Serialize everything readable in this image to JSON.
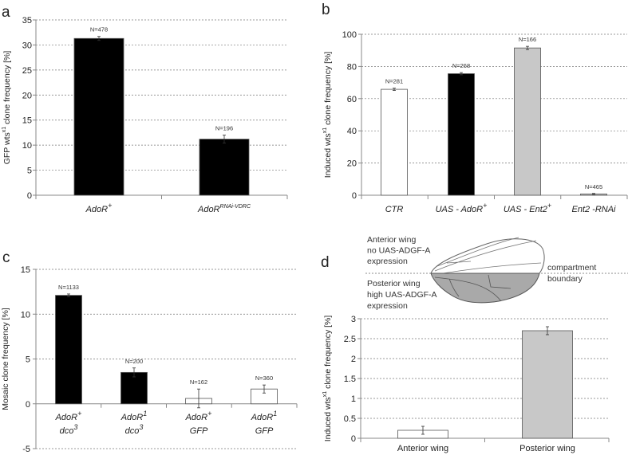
{
  "chart_data": [
    {
      "panel": "a",
      "type": "bar",
      "title": "",
      "ylabel_parts": [
        {
          "text": "GFP wts"
        },
        {
          "text": "x1",
          "sup": true
        },
        {
          "text": "  clone frequency [%]"
        }
      ],
      "ylim": [
        0,
        35
      ],
      "yticks": [
        0,
        5,
        10,
        15,
        20,
        25,
        30,
        35
      ],
      "grid": true,
      "categories": [
        {
          "lines": [
            {
              "base": "AdoR",
              "sup": "+"
            }
          ]
        },
        {
          "lines": [
            {
              "base": "AdoR",
              "sup": "RNAi-VDRC"
            }
          ]
        }
      ],
      "values": [
        31.3,
        11.2
      ],
      "errors": [
        0.4,
        0.8
      ],
      "n_labels": [
        "N=478",
        "N=196"
      ],
      "colors": [
        "#000000",
        "#000000"
      ]
    },
    {
      "panel": "b",
      "type": "bar",
      "title": "",
      "ylabel_parts": [
        {
          "text": "Induced  wts"
        },
        {
          "text": "x1",
          "sup": true
        },
        {
          "text": "  clone frequency [%]"
        }
      ],
      "ylim": [
        0,
        100
      ],
      "yticks": [
        0,
        20,
        40,
        60,
        80,
        100
      ],
      "grid": true,
      "categories": [
        {
          "lines": [
            {
              "base": "CTR",
              "sup": ""
            }
          ]
        },
        {
          "lines": [
            {
              "base": "UAS - AdoR",
              "sup": "+"
            }
          ]
        },
        {
          "lines": [
            {
              "base": "UAS - Ent2",
              "sup": "+"
            }
          ]
        },
        {
          "lines": [
            {
              "base": "Ent2 -RNAi",
              "sup": ""
            }
          ]
        }
      ],
      "values": [
        65.8,
        75.5,
        91.5,
        0.8
      ],
      "errors": [
        0.7,
        0.7,
        1.0,
        0.3
      ],
      "n_labels": [
        "N=281",
        "N=268",
        "N=166",
        "N=465"
      ],
      "colors": [
        "#ffffff",
        "#000000",
        "#c8c8c8",
        "#c8c8c8"
      ]
    },
    {
      "panel": "c",
      "type": "bar",
      "title": "",
      "ylabel_parts": [
        {
          "text": "Mosaic clone frequency [%]"
        }
      ],
      "ylim": [
        -5,
        15
      ],
      "yticks": [
        -5,
        0,
        5,
        10,
        15
      ],
      "grid": true,
      "categories": [
        {
          "lines": [
            {
              "base": "AdoR",
              "sup": "+"
            },
            {
              "base": "dco",
              "sup": "3"
            }
          ]
        },
        {
          "lines": [
            {
              "base": "AdoR",
              "sup": "1"
            },
            {
              "base": "dco",
              "sup": "3"
            }
          ]
        },
        {
          "lines": [
            {
              "base": "AdoR",
              "sup": "+"
            },
            {
              "base": "GFP",
              "sup": ""
            }
          ]
        },
        {
          "lines": [
            {
              "base": "AdoR",
              "sup": "1"
            },
            {
              "base": "GFP",
              "sup": ""
            }
          ]
        }
      ],
      "values": [
        12.1,
        3.5,
        0.6,
        1.65
      ],
      "errors": [
        0.15,
        0.5,
        1.05,
        0.45
      ],
      "n_labels": [
        "N=1133",
        "N=200",
        "N=162",
        "N=360"
      ],
      "colors": [
        "#000000",
        "#000000",
        "#ffffff",
        "#ffffff"
      ]
    },
    {
      "panel": "d",
      "type": "bar",
      "title": "",
      "ylabel_parts": [
        {
          "text": "Induced  wts"
        },
        {
          "text": "x1",
          "sup": true
        },
        {
          "text": "  clone frequency [%]"
        }
      ],
      "ylim": [
        0,
        3
      ],
      "yticks": [
        0,
        0.5,
        1,
        1.5,
        2,
        2.5,
        3
      ],
      "grid": true,
      "categories": [
        {
          "lines": [
            {
              "base": "Anterior wing",
              "sup": ""
            }
          ]
        },
        {
          "lines": [
            {
              "base": "Posterior wing",
              "sup": ""
            }
          ]
        }
      ],
      "values": [
        0.2,
        2.7
      ],
      "errors": [
        0.1,
        0.1
      ],
      "n_labels": [
        "",
        ""
      ],
      "colors": [
        "#ffffff",
        "#c8c8c8"
      ]
    }
  ],
  "panel_letters": [
    "a",
    "b",
    "c",
    "d"
  ],
  "wing_diagram": {
    "anterior_lines": [
      "Anterior wing",
      "no UAS-ADGF-A",
      "expression"
    ],
    "posterior_lines": [
      "Posterior wing",
      "high UAS-ADGF-A",
      "expression"
    ],
    "boundary_lines": [
      "compartment",
      "boundary"
    ]
  }
}
